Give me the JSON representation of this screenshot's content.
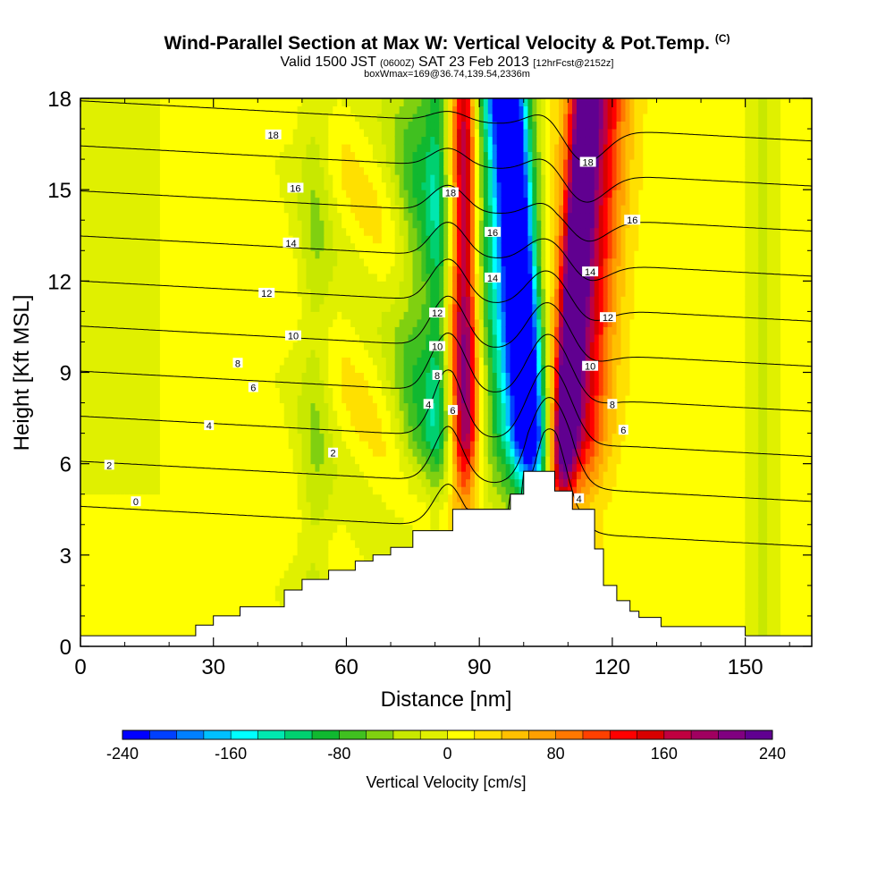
{
  "chart_data": {
    "type": "heatmap",
    "title": "Wind-Parallel Section at Max W: Vertical Velocity & Pot.Temp.",
    "title_mark": "(C)",
    "subtitle_valid": "Valid 1500 JST",
    "subtitle_z": "(0600Z)",
    "subtitle_date": "SAT 23 Feb 2013",
    "subtitle_fcst": "[12hrFcst@2152z]",
    "info": "boxWmax=169@36.74,139.54,2336m",
    "xlabel": "Distance [nm]",
    "ylabel": "Height [Kft MSL]",
    "xlim": [
      0,
      165
    ],
    "ylim": [
      0,
      18
    ],
    "xticks": [
      "0",
      "30",
      "60",
      "90",
      "120",
      "150"
    ],
    "yticks": [
      "0",
      "3",
      "6",
      "9",
      "12",
      "15",
      "18"
    ],
    "colorbar": {
      "label": "Vertical Velocity [cm/s]",
      "ticks": [
        "-240",
        "-160",
        "-80",
        "0",
        "80",
        "160",
        "240"
      ],
      "range": [
        -240,
        240
      ],
      "colors": [
        "#0000ff",
        "#0040ff",
        "#0080ff",
        "#00c0ff",
        "#00ffff",
        "#00e8b0",
        "#00d070",
        "#10b830",
        "#40c020",
        "#80d010",
        "#c8e800",
        "#e0f000",
        "#ffff00",
        "#ffe000",
        "#ffc000",
        "#ffa000",
        "#ff7800",
        "#ff4000",
        "#ff0000",
        "#d80000",
        "#c00040",
        "#a00060",
        "#800080",
        "#600090"
      ]
    },
    "terrain": [
      {
        "x": 0,
        "h": 0.35
      },
      {
        "x": 26,
        "h": 0.35
      },
      {
        "x": 26,
        "h": 0.7
      },
      {
        "x": 30,
        "h": 0.7
      },
      {
        "x": 30,
        "h": 1.0
      },
      {
        "x": 36,
        "h": 1.0
      },
      {
        "x": 36,
        "h": 1.3
      },
      {
        "x": 46,
        "h": 1.3
      },
      {
        "x": 46,
        "h": 1.85
      },
      {
        "x": 50,
        "h": 1.85
      },
      {
        "x": 50,
        "h": 2.2
      },
      {
        "x": 56,
        "h": 2.2
      },
      {
        "x": 56,
        "h": 2.5
      },
      {
        "x": 62,
        "h": 2.5
      },
      {
        "x": 62,
        "h": 2.8
      },
      {
        "x": 66,
        "h": 2.8
      },
      {
        "x": 66,
        "h": 3.0
      },
      {
        "x": 70,
        "h": 3.0
      },
      {
        "x": 70,
        "h": 3.25
      },
      {
        "x": 75,
        "h": 3.25
      },
      {
        "x": 75,
        "h": 3.8
      },
      {
        "x": 84,
        "h": 3.8
      },
      {
        "x": 84,
        "h": 4.5
      },
      {
        "x": 97,
        "h": 4.5
      },
      {
        "x": 97,
        "h": 5.0
      },
      {
        "x": 100,
        "h": 5.0
      },
      {
        "x": 100,
        "h": 5.75
      },
      {
        "x": 107,
        "h": 5.75
      },
      {
        "x": 107,
        "h": 5.1
      },
      {
        "x": 111,
        "h": 5.1
      },
      {
        "x": 111,
        "h": 4.5
      },
      {
        "x": 116,
        "h": 4.5
      },
      {
        "x": 116,
        "h": 3.2
      },
      {
        "x": 118,
        "h": 3.2
      },
      {
        "x": 118,
        "h": 2.0
      },
      {
        "x": 121,
        "h": 2.0
      },
      {
        "x": 121,
        "h": 1.5
      },
      {
        "x": 124,
        "h": 1.5
      },
      {
        "x": 124,
        "h": 1.15
      },
      {
        "x": 126,
        "h": 1.15
      },
      {
        "x": 126,
        "h": 0.95
      },
      {
        "x": 131,
        "h": 0.95
      },
      {
        "x": 131,
        "h": 0.65
      },
      {
        "x": 150,
        "h": 0.65
      },
      {
        "x": 150,
        "h": 0.35
      },
      {
        "x": 165,
        "h": 0.35
      }
    ],
    "velocity_bands": [
      {
        "x": 77,
        "w": 6,
        "v": -80
      },
      {
        "x": 81,
        "w": 3,
        "v": -110
      },
      {
        "x": 85,
        "w": 6,
        "v": 100
      },
      {
        "x": 87,
        "w": 2.5,
        "v": 130
      },
      {
        "x": 99,
        "w": 8,
        "v": -160
      },
      {
        "x": 102,
        "w": 3.5,
        "v": -210
      },
      {
        "x": 111,
        "w": 7,
        "v": 170
      },
      {
        "x": 109,
        "w": 2.5,
        "v": 210
      },
      {
        "x": 53,
        "w": 4,
        "v": -40
      },
      {
        "x": 154,
        "w": 3,
        "v": -35
      }
    ],
    "theta_levels": [
      0,
      2,
      4,
      6,
      8,
      10,
      12,
      14,
      16,
      18
    ],
    "contour_labels": [
      {
        "text": "0",
        "x": 12.5,
        "y": 4.75
      },
      {
        "text": "2",
        "x": 6.5,
        "y": 5.95
      },
      {
        "text": "4",
        "x": 29,
        "y": 7.25
      },
      {
        "text": "6",
        "x": 39,
        "y": 8.5
      },
      {
        "text": "8",
        "x": 35.5,
        "y": 9.3
      },
      {
        "text": "10",
        "x": 48,
        "y": 10.2
      },
      {
        "text": "12",
        "x": 42,
        "y": 11.6
      },
      {
        "text": "14",
        "x": 47.5,
        "y": 13.25
      },
      {
        "text": "16",
        "x": 48.5,
        "y": 15.05
      },
      {
        "text": "18",
        "x": 43.5,
        "y": 16.8
      },
      {
        "text": "2",
        "x": 57,
        "y": 6.35
      },
      {
        "text": "4",
        "x": 78.5,
        "y": 7.95
      },
      {
        "text": "6",
        "x": 84,
        "y": 7.75
      },
      {
        "text": "8",
        "x": 80.5,
        "y": 8.9
      },
      {
        "text": "10",
        "x": 80.5,
        "y": 9.85
      },
      {
        "text": "12",
        "x": 80.5,
        "y": 10.95
      },
      {
        "text": "14",
        "x": 93,
        "y": 12.1
      },
      {
        "text": "16",
        "x": 93,
        "y": 13.6
      },
      {
        "text": "18",
        "x": 83.5,
        "y": 14.9
      },
      {
        "text": "4",
        "x": 112.5,
        "y": 4.85
      },
      {
        "text": "6",
        "x": 122.5,
        "y": 7.1
      },
      {
        "text": "8",
        "x": 120,
        "y": 7.95
      },
      {
        "text": "10",
        "x": 115,
        "y": 9.2
      },
      {
        "text": "12",
        "x": 119,
        "y": 10.8
      },
      {
        "text": "14",
        "x": 115,
        "y": 12.3
      },
      {
        "text": "16",
        "x": 124.5,
        "y": 14.0
      },
      {
        "text": "18",
        "x": 114.5,
        "y": 15.9
      }
    ]
  }
}
